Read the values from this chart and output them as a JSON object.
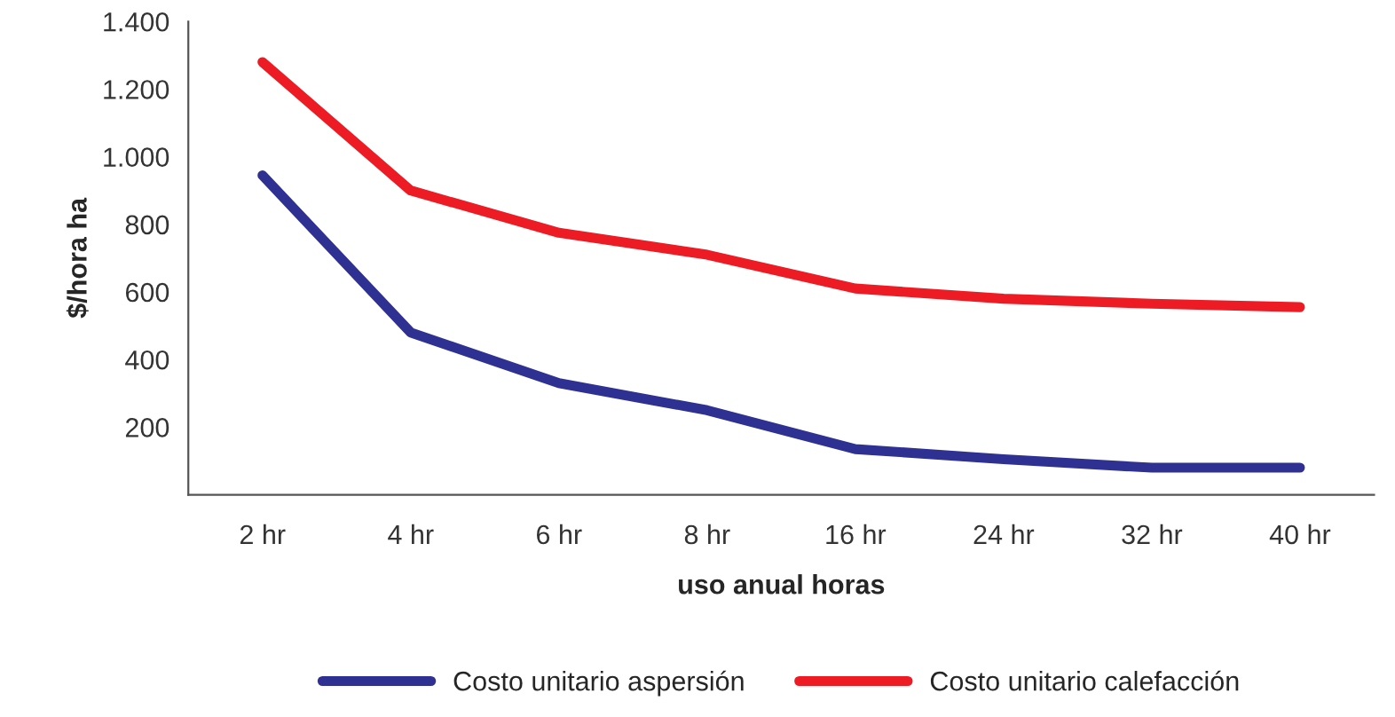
{
  "chart_data": {
    "type": "line",
    "xlabel": "uso anual horas",
    "ylabel": "$/hora ha",
    "categories": [
      "2 hr",
      "4 hr",
      "6 hr",
      "8 hr",
      "16 hr",
      "24 hr",
      "32 hr",
      "40 hr"
    ],
    "series": [
      {
        "name": "Costo unitario aspersión",
        "color": "#2e3192",
        "values": [
          945,
          480,
          330,
          250,
          135,
          105,
          80,
          80
        ]
      },
      {
        "name": "Costo unitario calefacción",
        "color": "#ed1c24",
        "values": [
          1280,
          900,
          775,
          710,
          610,
          580,
          565,
          555
        ]
      }
    ],
    "ylim": [
      0,
      1400
    ],
    "yticks": [
      {
        "value": 0,
        "label": null
      },
      200,
      400,
      600,
      800,
      {
        "value": 1000,
        "label": "1.000"
      },
      {
        "value": 1200,
        "label": "1.200"
      },
      {
        "value": 1400,
        "label": "1.400"
      }
    ],
    "grid": false,
    "legend": "bottom",
    "marker": "none",
    "line_style": "solid"
  }
}
